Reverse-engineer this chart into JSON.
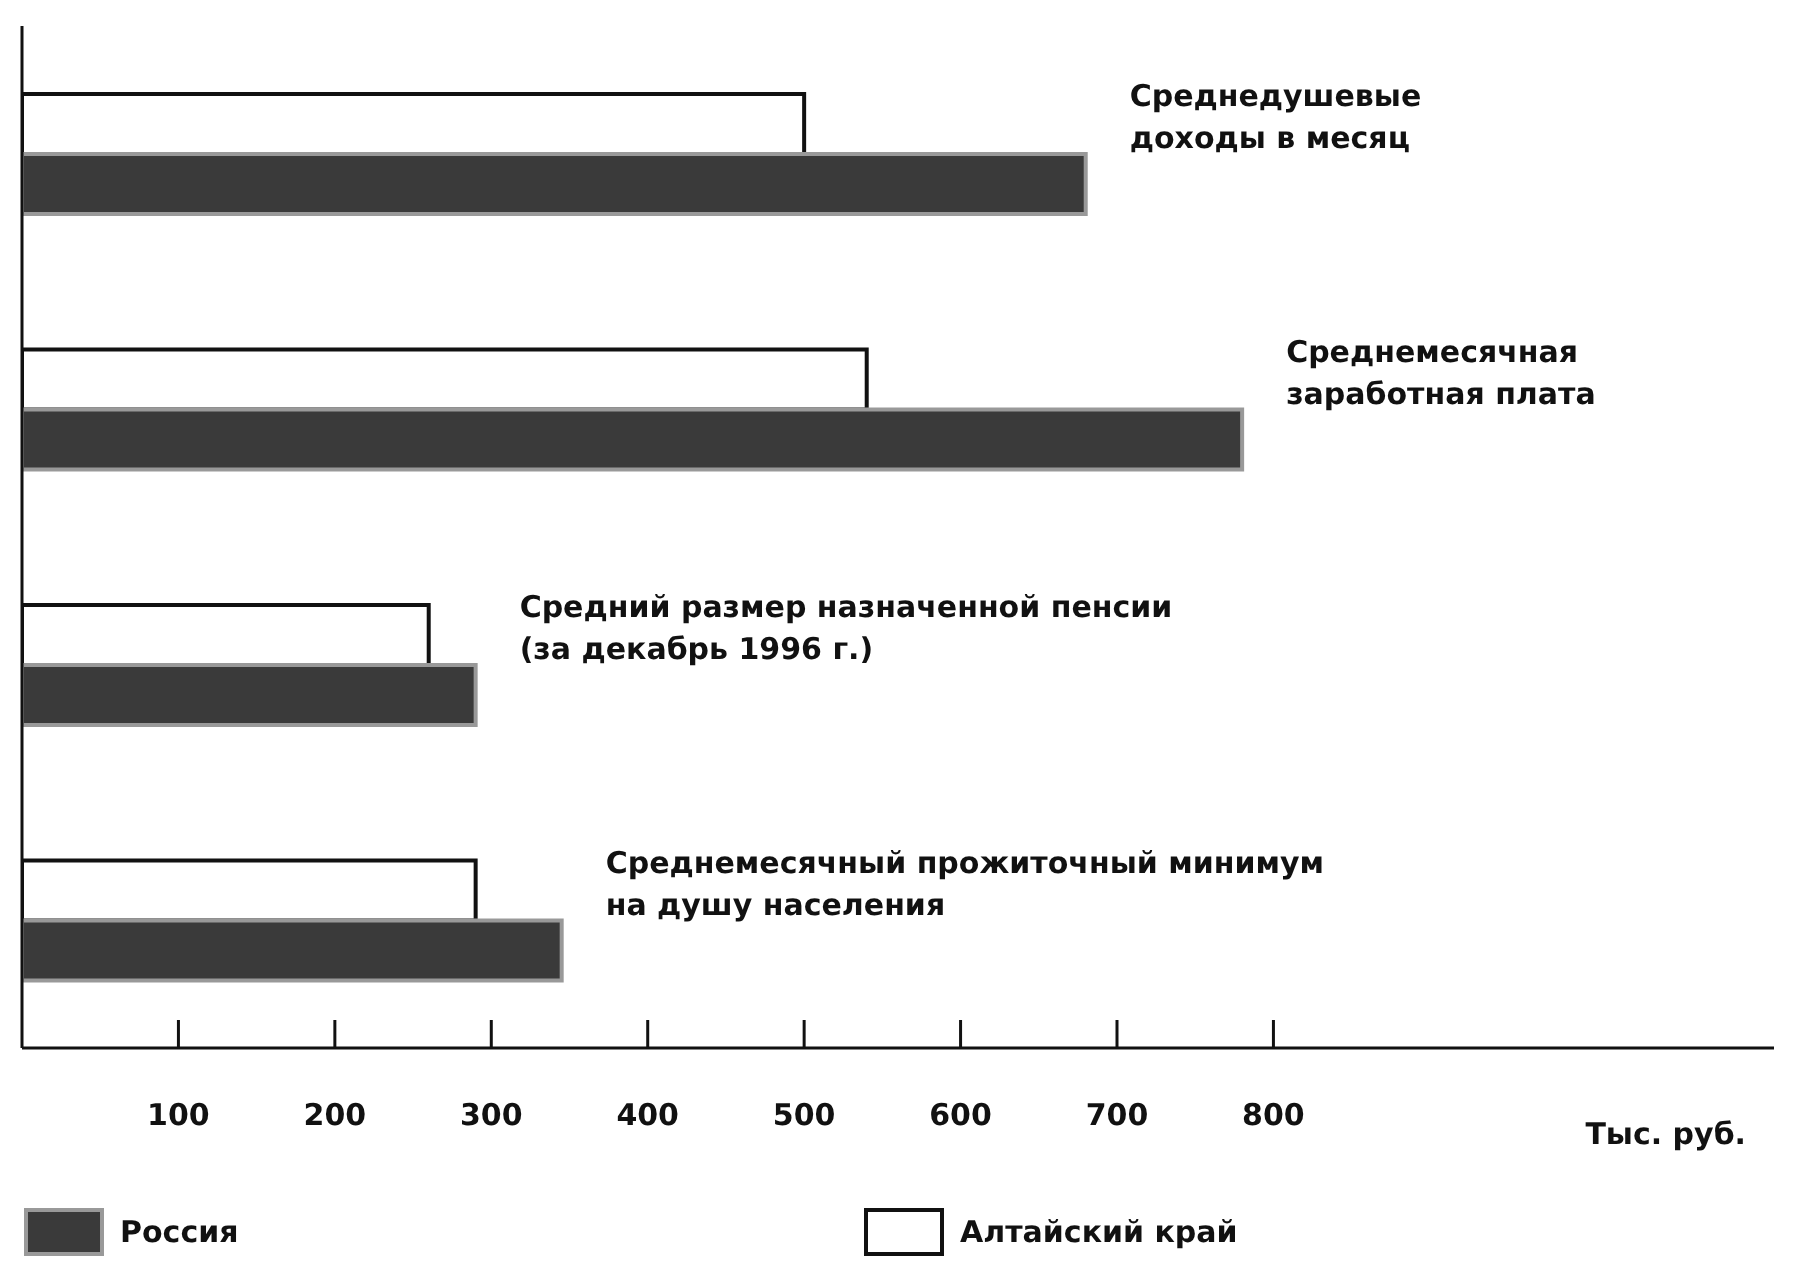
{
  "chart_data": {
    "type": "bar",
    "orientation": "horizontal",
    "categories": [
      "Среднедушевые доходы в месяц",
      "Среднемесячная заработная плата",
      "Средний размер назначенной пенсии (за декабрь 1996 г.)",
      "Среднемесячный прожиточный минимум на душу населения"
    ],
    "series": [
      {
        "name": "Алтайский край",
        "color": "#ffffff",
        "values": [
          500,
          540,
          260,
          290
        ]
      },
      {
        "name": "Россия",
        "color": "#3a3a3a",
        "values": [
          680,
          780,
          290,
          345
        ]
      }
    ],
    "xlabel": "Тыс. руб.",
    "xlim": [
      0,
      1120
    ],
    "xticks": [
      100,
      200,
      300,
      400,
      500,
      600,
      700,
      800
    ],
    "grid": false,
    "legend": "bottom",
    "tick_labels": "x"
  }
}
